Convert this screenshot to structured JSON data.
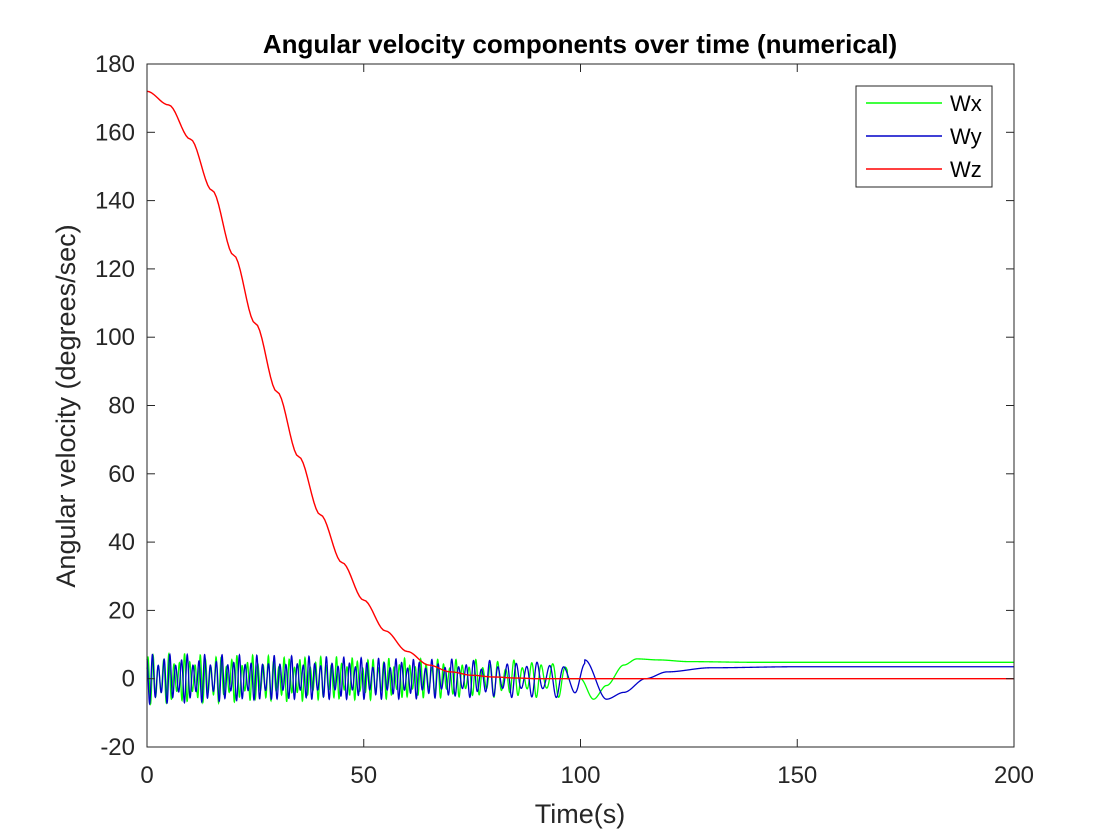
{
  "chart_data": {
    "type": "line",
    "title": "Angular velocity components over time (numerical)",
    "xlabel": "Time(s)",
    "ylabel": "Angular velocity (degrees/sec)",
    "xlim": [
      0,
      200
    ],
    "ylim": [
      -20,
      180
    ],
    "xticks": [
      0,
      50,
      100,
      150,
      200
    ],
    "yticks": [
      -20,
      0,
      20,
      40,
      60,
      80,
      100,
      120,
      140,
      160,
      180
    ],
    "grid": false,
    "legend_position": "top-right",
    "series": [
      {
        "name": "Wx",
        "color": "#00ff00",
        "description_points": {
          "x": [
            0,
            10,
            20,
            30,
            40,
            50,
            60,
            70,
            80,
            90,
            95,
            100,
            103,
            106,
            110,
            113,
            118,
            125,
            140,
            200
          ],
          "y": [
            0,
            0,
            0,
            0,
            0,
            0,
            0,
            0,
            0,
            0,
            0,
            0,
            -6,
            -2,
            4,
            5.8,
            5.5,
            5,
            4.8,
            4.8
          ]
        },
        "oscillation_amplitude": [
          [
            0,
            7.5
          ],
          [
            20,
            7
          ],
          [
            40,
            6.5
          ],
          [
            60,
            6
          ],
          [
            80,
            5.5
          ],
          [
            97,
            5.5
          ]
        ]
      },
      {
        "name": "Wy",
        "color": "#0000c8",
        "description_points": {
          "x": [
            0,
            20,
            40,
            60,
            80,
            97,
            101,
            106,
            110,
            115,
            120,
            130,
            150,
            200
          ],
          "y": [
            0,
            0,
            0,
            0,
            0,
            0,
            5.5,
            -6,
            -4,
            0,
            2,
            3.2,
            3.5,
            3.5
          ]
        },
        "oscillation_amplitude": [
          [
            0,
            7.5
          ],
          [
            20,
            7
          ],
          [
            40,
            6.5
          ],
          [
            60,
            6
          ],
          [
            80,
            5.5
          ],
          [
            101,
            5.5
          ]
        ]
      },
      {
        "name": "Wz",
        "color": "#ff0000",
        "x": [
          0,
          5,
          10,
          15,
          20,
          25,
          30,
          35,
          40,
          45,
          50,
          55,
          60,
          65,
          70,
          75,
          80,
          85,
          90,
          95,
          100,
          120,
          150,
          200
        ],
        "y": [
          172,
          168,
          158,
          143,
          124,
          104,
          84,
          65,
          48,
          34,
          23,
          14,
          8,
          4,
          2,
          1,
          0.5,
          0.2,
          0,
          0,
          0,
          0,
          0,
          0
        ]
      }
    ]
  }
}
